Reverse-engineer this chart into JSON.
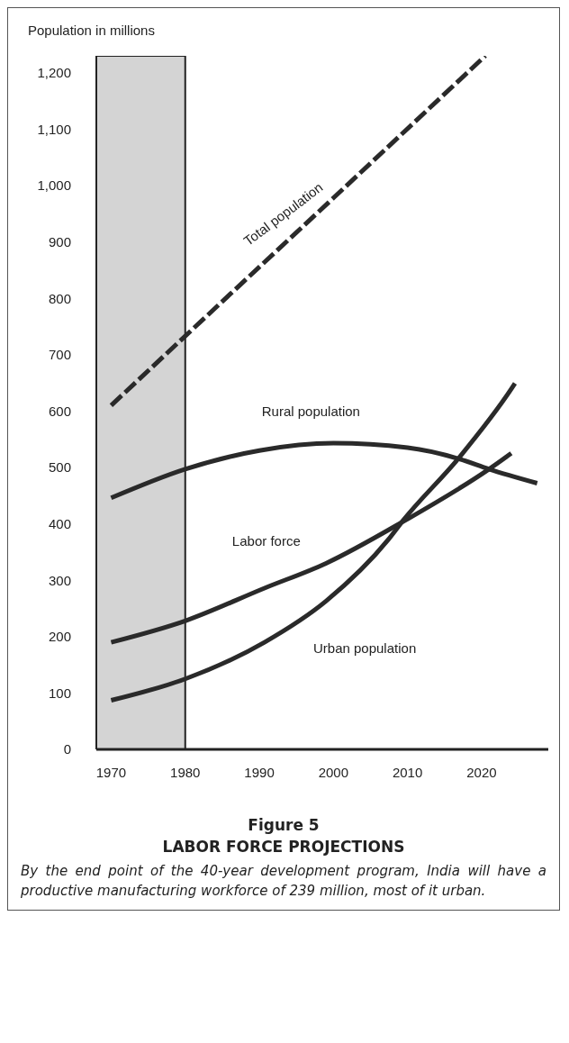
{
  "chart_data": {
    "type": "line",
    "title": "Figure 5",
    "subtitle": "LABOR FORCE PROJECTIONS",
    "ylabel": "Population in millions",
    "annotations": [
      "By the end point of the 40-year development program, India will have a productive manufacturing workforce of 239 million, most of it urban."
    ],
    "xlim": [
      1968,
      2029
    ],
    "xticks": [
      1970,
      1980,
      1990,
      2000,
      2010,
      2020
    ],
    "ylim": [
      0,
      1230
    ],
    "yticks": [
      0,
      100,
      200,
      300,
      400,
      500,
      600,
      700,
      800,
      900,
      {
        "value": 1000,
        "label": "1,000"
      },
      {
        "value": 1100,
        "label": "1,100"
      },
      {
        "value": 1200,
        "label": "1,200"
      }
    ],
    "marker": "none",
    "bands": [
      {
        "axis": "x",
        "from": 1968,
        "to": 1980,
        "color": "#d4d4d4"
      }
    ],
    "series": [
      {
        "name": "Total population",
        "color": "#2a2a2a",
        "line_style": "dashed",
        "x": [
          1970,
          1980,
          2000,
          2020.5
        ],
        "values": [
          610,
          733,
          978,
          1230
        ]
      },
      {
        "name": "Rural population",
        "color": "#2a2a2a",
        "line_style": "solid",
        "x": [
          1970,
          1980,
          1990,
          2000,
          2010,
          2017,
          2021,
          2027.5
        ],
        "values": [
          446,
          497,
          530,
          543,
          535,
          515,
          497,
          472
        ]
      },
      {
        "name": "Labor force",
        "color": "#2a2a2a",
        "line_style": "solid",
        "x": [
          1970,
          1980,
          1990.7,
          1999,
          2009.4,
          2021,
          2024
        ],
        "values": [
          190,
          228,
          286,
          330,
          404,
          497,
          525
        ]
      },
      {
        "name": "Urban population",
        "color": "#2a2a2a",
        "line_style": "solid",
        "x": [
          1970,
          1980,
          1990.7,
          1999,
          2007.4,
          2009.4,
          2017,
          2024,
          2024.5
        ],
        "values": [
          87,
          125,
          190,
          263,
          372,
          406,
          518,
          639,
          649
        ]
      }
    ]
  }
}
